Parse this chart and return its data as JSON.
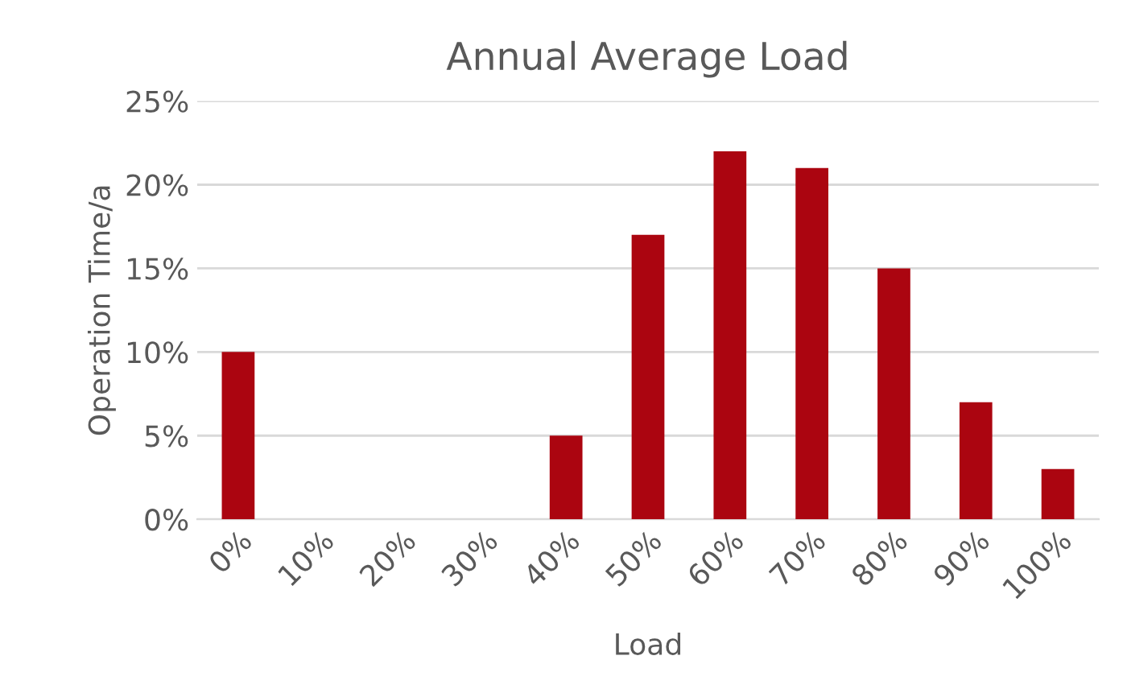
{
  "chart_data": {
    "type": "bar",
    "title": "Annual Average Load",
    "xlabel": "Load",
    "ylabel": "Operation Time/a",
    "categories": [
      "0%",
      "10%",
      "20%",
      "30%",
      "40%",
      "50%",
      "60%",
      "70%",
      "80%",
      "90%",
      "100%"
    ],
    "values": [
      10,
      0,
      0,
      0,
      5,
      17,
      22,
      21,
      15,
      7,
      3
    ],
    "color": "#ab0510",
    "ylim": [
      0,
      25
    ],
    "yticks": [
      {
        "value": 0,
        "label": "0%"
      },
      {
        "value": 5,
        "label": "5%"
      },
      {
        "value": 10,
        "label": "10%"
      },
      {
        "value": 15,
        "label": "15%"
      },
      {
        "value": 20,
        "label": "20%"
      },
      {
        "value": 25,
        "label": "25%"
      }
    ],
    "grid": "y"
  }
}
